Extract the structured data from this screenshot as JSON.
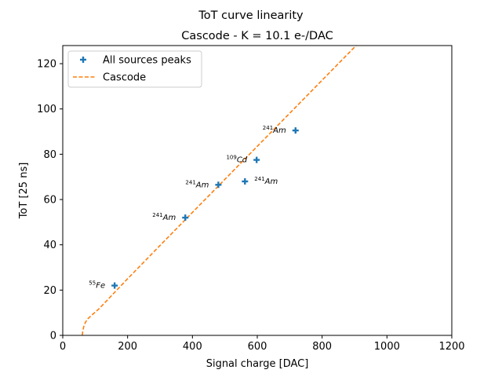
{
  "chart_data": {
    "type": "scatter",
    "title": "ToT curve linearity",
    "subtitle": "Cascode - K = 10.1 e-/DAC",
    "xlabel": "Signal charge [DAC]",
    "ylabel": "ToT [25 ns]",
    "xlim": [
      0,
      1200
    ],
    "ylim": [
      0,
      128
    ],
    "xticks": [
      0,
      200,
      400,
      600,
      800,
      1000,
      1200
    ],
    "yticks": [
      0,
      20,
      40,
      60,
      80,
      100,
      120
    ],
    "grid": false,
    "legend_position": "top-left",
    "colors": {
      "points": "#1f77b4",
      "curve": "#ff7f0e"
    },
    "series": [
      {
        "name": "All sources peaks",
        "kind": "points",
        "marker": "plus",
        "points": [
          {
            "x": 160,
            "y": 22,
            "label_sup": "55",
            "label": "Fe"
          },
          {
            "x": 378,
            "y": 52,
            "label_sup": "241",
            "label": "Am"
          },
          {
            "x": 480,
            "y": 66.5,
            "label_sup": "241",
            "label": "Am"
          },
          {
            "x": 562,
            "y": 68,
            "label_sup": "241",
            "label": "Am"
          },
          {
            "x": 598,
            "y": 77.5,
            "label_sup": "109",
            "label": "Cd"
          },
          {
            "x": 718,
            "y": 90.5,
            "label_sup": "241",
            "label": "Am"
          }
        ]
      },
      {
        "name": "Cascode",
        "kind": "line",
        "style": "dashed",
        "points": [
          {
            "x": 60,
            "y": 0
          },
          {
            "x": 62,
            "y": 2
          },
          {
            "x": 65,
            "y": 4
          },
          {
            "x": 70,
            "y": 5.8
          },
          {
            "x": 78,
            "y": 7.4
          },
          {
            "x": 90,
            "y": 9
          },
          {
            "x": 110,
            "y": 11.5
          },
          {
            "x": 135,
            "y": 15.2
          },
          {
            "x": 160,
            "y": 19
          },
          {
            "x": 200,
            "y": 25
          },
          {
            "x": 300,
            "y": 39.7
          },
          {
            "x": 400,
            "y": 54.3
          },
          {
            "x": 500,
            "y": 68.9
          },
          {
            "x": 600,
            "y": 83.5
          },
          {
            "x": 700,
            "y": 98.1
          },
          {
            "x": 800,
            "y": 112.7
          },
          {
            "x": 900,
            "y": 127.3
          },
          {
            "x": 1000,
            "y": 141.9
          }
        ]
      }
    ]
  }
}
